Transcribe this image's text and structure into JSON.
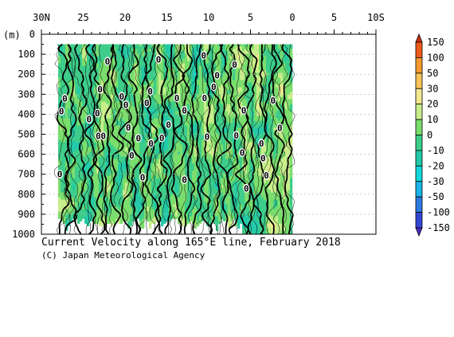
{
  "chart_data": {
    "type": "heatmap",
    "title": "Current Velocity along 165°E line, February 2018",
    "credit": "(C) Japan Meteorological Agency",
    "x_ticks": [
      "30N",
      "25",
      "20",
      "15",
      "10",
      "5",
      "0",
      "5",
      "10S"
    ],
    "x_tick_values": [
      30,
      25,
      20,
      15,
      10,
      5,
      0,
      -5,
      -10
    ],
    "xlim": [
      30,
      -10
    ],
    "y_unit": "(m)",
    "y_ticks": [
      "0",
      "100",
      "200",
      "300",
      "400",
      "500",
      "600",
      "700",
      "800",
      "900",
      "1000"
    ],
    "y_tick_values": [
      0,
      100,
      200,
      300,
      400,
      500,
      600,
      700,
      800,
      900,
      1000
    ],
    "ylim": [
      0,
      1000
    ],
    "data_extent": {
      "lat": [
        28,
        0
      ],
      "depth": [
        50,
        1000
      ]
    },
    "colorbar": {
      "labels": [
        "150",
        "100",
        "50",
        "30",
        "20",
        "10",
        "0",
        "-10",
        "-20",
        "-30",
        "-50",
        "-100",
        "-150"
      ],
      "levels": [
        150,
        100,
        50,
        30,
        20,
        10,
        0,
        -10,
        -20,
        -30,
        -50,
        -100,
        -150
      ],
      "colors": [
        "#c83214",
        "#ee5a1c",
        "#f59a2e",
        "#f8c45a",
        "#f5e890",
        "#c8ee8a",
        "#7ade6c",
        "#3ccd8a",
        "#22c9a8",
        "#12d8dc",
        "#1ab4e6",
        "#2c7ae0",
        "#3246d2",
        "#4b2cc8"
      ]
    },
    "contour_zero_labels": [
      {
        "lat": 27.2,
        "depth": 320
      },
      {
        "lat": 27.6,
        "depth": 385
      },
      {
        "lat": 27.8,
        "depth": 700
      },
      {
        "lat": 24.3,
        "depth": 425
      },
      {
        "lat": 23.0,
        "depth": 275
      },
      {
        "lat": 23.3,
        "depth": 395
      },
      {
        "lat": 23.2,
        "depth": 508
      },
      {
        "lat": 22.6,
        "depth": 508
      },
      {
        "lat": 22.1,
        "depth": 135
      },
      {
        "lat": 20.4,
        "depth": 310
      },
      {
        "lat": 19.9,
        "depth": 352
      },
      {
        "lat": 19.6,
        "depth": 467
      },
      {
        "lat": 19.2,
        "depth": 605
      },
      {
        "lat": 18.4,
        "depth": 520
      },
      {
        "lat": 17.9,
        "depth": 715
      },
      {
        "lat": 17.4,
        "depth": 343
      },
      {
        "lat": 17.0,
        "depth": 285
      },
      {
        "lat": 16.9,
        "depth": 545
      },
      {
        "lat": 16.0,
        "depth": 125
      },
      {
        "lat": 15.6,
        "depth": 518
      },
      {
        "lat": 14.8,
        "depth": 452
      },
      {
        "lat": 13.8,
        "depth": 318
      },
      {
        "lat": 12.9,
        "depth": 380
      },
      {
        "lat": 12.9,
        "depth": 727
      },
      {
        "lat": 10.6,
        "depth": 105
      },
      {
        "lat": 10.5,
        "depth": 318
      },
      {
        "lat": 10.2,
        "depth": 512
      },
      {
        "lat": 9.0,
        "depth": 205
      },
      {
        "lat": 9.4,
        "depth": 262
      },
      {
        "lat": 6.9,
        "depth": 152
      },
      {
        "lat": 6.7,
        "depth": 505
      },
      {
        "lat": 5.8,
        "depth": 380
      },
      {
        "lat": 6.0,
        "depth": 592
      },
      {
        "lat": 5.5,
        "depth": 770
      },
      {
        "lat": 3.7,
        "depth": 545
      },
      {
        "lat": 3.5,
        "depth": 620
      },
      {
        "lat": 3.1,
        "depth": 705
      },
      {
        "lat": 2.3,
        "depth": 330
      },
      {
        "lat": 1.5,
        "depth": 468
      }
    ]
  }
}
